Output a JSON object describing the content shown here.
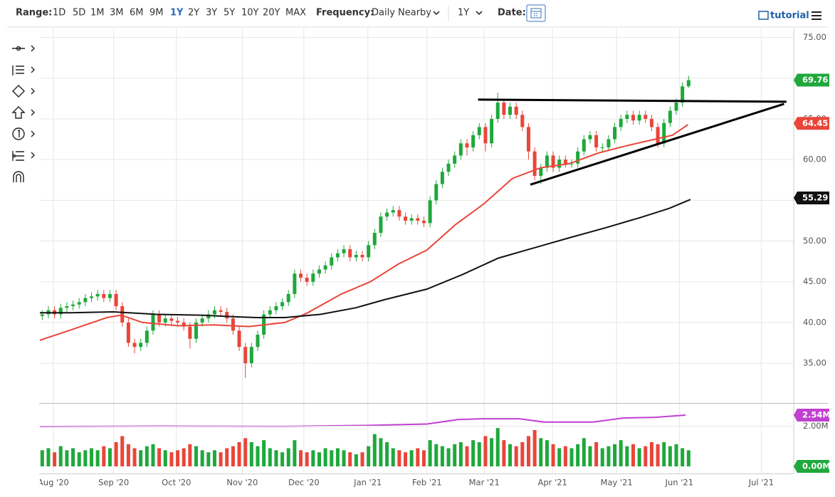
{
  "toolbar": {
    "range_label": "Range:",
    "ranges": [
      "1D",
      "5D",
      "1M",
      "3M",
      "6M",
      "9M",
      "1Y",
      "2Y",
      "3Y",
      "5Y",
      "10Y",
      "20Y",
      "MAX"
    ],
    "active_range": 6,
    "frequency_label": "Frequency:",
    "frequency": "Daily Nearby",
    "period": "1Y",
    "date_label": "Date:",
    "tutorial": "tutorial"
  },
  "chart_data": {
    "type": "candlestick",
    "xlim": [
      0,
      122
    ],
    "xticks": [
      {
        "value": 2.3,
        "label": "Aug '20"
      },
      {
        "value": 12.1,
        "label": "Sep '20"
      },
      {
        "value": 22.3,
        "label": "Oct '20"
      },
      {
        "value": 33,
        "label": "Nov '20"
      },
      {
        "value": 43,
        "label": "Dec '20"
      },
      {
        "value": 53.4,
        "label": "Jan '21"
      },
      {
        "value": 63,
        "label": "Feb '21"
      },
      {
        "value": 72.3,
        "label": "Mar '21"
      },
      {
        "value": 83.4,
        "label": "Apr '21"
      },
      {
        "value": 93.8,
        "label": "May '21"
      },
      {
        "value": 104,
        "label": "Jun '21"
      },
      {
        "value": 117.3,
        "label": "Jul '21"
      }
    ],
    "ylim": [
      30.2,
      76.1
    ],
    "yticks": [
      {
        "value": 35,
        "label": "35.00"
      },
      {
        "value": 40,
        "label": "40.00"
      },
      {
        "value": 45,
        "label": "45.00"
      },
      {
        "value": 50,
        "label": "50.00"
      },
      {
        "value": 55,
        "label": "55.00"
      },
      {
        "value": 60,
        "label": "60.00"
      },
      {
        "value": 65,
        "label": "65.00"
      },
      {
        "value": 70,
        "label": "70.00"
      },
      {
        "value": 75,
        "label": "75.00"
      }
    ],
    "vlim": [
      0,
      3.07
    ],
    "vticks": [
      {
        "value": 2,
        "label": "2.00M"
      }
    ],
    "grid": true,
    "up_color": "#1fa83c",
    "down_color": "#e8463a",
    "open": [
      40.8,
      41.0,
      41.5,
      41.0,
      41.8,
      42.0,
      42.2,
      42.5,
      43.0,
      43.2,
      43.5,
      43.0,
      43.5,
      42.0,
      40.0,
      37.5,
      37.0,
      37.5,
      39.0,
      41.0,
      40.0,
      40.5,
      40.2,
      40.0,
      39.5,
      38.0,
      40.0,
      40.5,
      41.0,
      41.5,
      41.3,
      40.5,
      39.0,
      37.0,
      35.0,
      37.0,
      38.5,
      41.0,
      41.5,
      42.0,
      42.5,
      43.5,
      46.0,
      45.5,
      45.0,
      46.0,
      46.5,
      47.0,
      48.0,
      48.5,
      49.0,
      48.0,
      48.3,
      48.0,
      49.5,
      51.0,
      53.0,
      53.5,
      53.8,
      53.0,
      52.5,
      52.8,
      52.5,
      52.2,
      55.0,
      57.0,
      58.5,
      59.5,
      60.5,
      62.0,
      61.5,
      63.0,
      64.0,
      62.0,
      65.0,
      67.0,
      65.5,
      66.5,
      65.5,
      64.0,
      61.0,
      58.0,
      59.0,
      60.5,
      59.0,
      60.0,
      59.5,
      59.5,
      61.0,
      62.5,
      63.0,
      61.5,
      61.5,
      62.5,
      64.0,
      65.0,
      65.5,
      64.8,
      65.5,
      65.0,
      64.0,
      62.0,
      64.5,
      66.0,
      67.0,
      69.0
    ],
    "high": [
      41.5,
      42.0,
      42.0,
      42.3,
      42.5,
      42.7,
      43.0,
      43.5,
      43.7,
      44.0,
      44.0,
      44.0,
      44.0,
      42.5,
      40.5,
      38.0,
      38.0,
      39.5,
      41.5,
      41.5,
      41.0,
      41.0,
      40.7,
      40.5,
      40.0,
      40.5,
      41.0,
      41.5,
      42.0,
      42.0,
      41.8,
      41.0,
      39.5,
      37.5,
      37.5,
      39.0,
      41.5,
      42.0,
      42.5,
      43.0,
      44.0,
      46.5,
      46.5,
      46.0,
      46.5,
      47.0,
      47.5,
      48.5,
      49.0,
      49.5,
      49.5,
      48.8,
      48.8,
      50.0,
      51.5,
      53.5,
      54.0,
      54.3,
      54.3,
      53.5,
      53.3,
      53.3,
      53.0,
      55.5,
      57.5,
      59.0,
      60.0,
      61.0,
      62.5,
      62.5,
      63.5,
      64.5,
      64.5,
      65.5,
      68.2,
      67.5,
      67.0,
      67.0,
      66.0,
      64.5,
      61.5,
      59.5,
      61.0,
      61.0,
      60.5,
      60.5,
      60.0,
      61.5,
      63.0,
      63.5,
      63.5,
      62.0,
      63.0,
      64.5,
      65.5,
      66.0,
      66.0,
      66.0,
      66.0,
      65.5,
      64.5,
      65.0,
      66.5,
      67.5,
      69.5,
      70.3
    ],
    "low": [
      40.3,
      40.5,
      40.5,
      40.5,
      41.3,
      41.5,
      41.7,
      42.0,
      42.5,
      42.7,
      42.5,
      42.5,
      41.5,
      39.5,
      37.0,
      36.2,
      36.5,
      37.0,
      38.5,
      39.5,
      39.5,
      39.7,
      39.5,
      39.0,
      36.8,
      37.5,
      39.5,
      40.0,
      40.5,
      40.8,
      40.0,
      38.5,
      36.5,
      33.2,
      34.5,
      36.5,
      38.0,
      40.5,
      41.0,
      41.5,
      42.0,
      43.0,
      45.0,
      44.5,
      44.5,
      45.5,
      46.0,
      46.5,
      47.5,
      48.0,
      47.5,
      47.5,
      47.5,
      47.5,
      49.0,
      50.5,
      52.5,
      53.0,
      52.5,
      52.0,
      52.0,
      52.0,
      51.7,
      51.7,
      54.5,
      56.5,
      58.0,
      59.0,
      60.0,
      60.5,
      61.0,
      62.5,
      61.0,
      61.5,
      64.5,
      65.0,
      65.0,
      65.0,
      63.5,
      60.0,
      57.5,
      57.0,
      58.5,
      58.5,
      58.5,
      59.0,
      59.0,
      59.0,
      60.5,
      62.0,
      61.0,
      61.0,
      61.0,
      62.0,
      63.5,
      64.5,
      64.3,
      64.3,
      64.5,
      63.5,
      61.5,
      61.5,
      64.0,
      65.5,
      66.5,
      68.8
    ],
    "close": [
      41.0,
      41.5,
      41.0,
      41.8,
      42.0,
      42.2,
      42.5,
      43.0,
      43.2,
      43.5,
      43.0,
      43.5,
      42.0,
      40.0,
      37.5,
      37.0,
      37.5,
      39.0,
      41.0,
      40.0,
      40.5,
      40.2,
      40.0,
      39.5,
      38.0,
      40.0,
      40.5,
      41.0,
      41.5,
      41.3,
      40.5,
      39.0,
      37.0,
      35.0,
      37.0,
      38.5,
      41.0,
      41.5,
      42.0,
      42.5,
      43.5,
      46.0,
      45.5,
      45.0,
      46.0,
      46.5,
      47.0,
      48.0,
      48.5,
      49.0,
      48.0,
      48.3,
      48.0,
      49.5,
      51.0,
      53.0,
      53.5,
      53.8,
      53.0,
      52.5,
      52.8,
      52.5,
      52.2,
      55.0,
      57.0,
      58.5,
      59.5,
      60.5,
      62.0,
      61.5,
      63.0,
      64.0,
      62.0,
      65.0,
      67.0,
      65.5,
      66.5,
      65.5,
      64.0,
      61.0,
      58.0,
      59.0,
      60.5,
      59.0,
      60.0,
      59.5,
      59.5,
      61.0,
      62.5,
      63.0,
      61.5,
      61.5,
      62.5,
      64.0,
      65.0,
      65.5,
      64.8,
      65.5,
      65.0,
      64.0,
      62.0,
      64.5,
      66.0,
      67.0,
      69.0,
      69.76
    ],
    "volume": [
      0.8,
      0.9,
      0.7,
      1.0,
      0.8,
      0.9,
      0.7,
      0.8,
      0.9,
      0.8,
      1.0,
      0.9,
      1.2,
      1.5,
      1.1,
      0.9,
      0.8,
      1.0,
      1.1,
      0.9,
      0.8,
      0.7,
      0.8,
      0.9,
      1.1,
      1.0,
      0.8,
      0.7,
      0.8,
      0.7,
      0.9,
      1.0,
      1.2,
      1.4,
      1.2,
      1.0,
      1.3,
      0.9,
      0.8,
      0.7,
      0.9,
      1.3,
      0.8,
      0.7,
      0.8,
      0.7,
      0.9,
      0.8,
      0.9,
      0.8,
      0.7,
      0.6,
      0.7,
      1.0,
      1.6,
      1.4,
      1.2,
      0.9,
      0.8,
      0.7,
      0.8,
      0.9,
      0.8,
      1.3,
      1.1,
      1.0,
      0.9,
      1.1,
      1.2,
      1.0,
      1.3,
      1.2,
      1.5,
      1.4,
      1.9,
      1.3,
      1.1,
      1.0,
      1.2,
      1.5,
      1.8,
      1.4,
      1.3,
      1.1,
      0.9,
      1.0,
      0.9,
      1.1,
      1.4,
      1.0,
      1.2,
      0.9,
      1.0,
      1.1,
      1.3,
      1.0,
      1.1,
      0.9,
      1.0,
      1.2,
      1.1,
      1.2,
      1.0,
      1.1,
      0.9,
      0.8
    ],
    "lines": [
      {
        "color": "#e8463a",
        "x": [
          0,
          5.2,
          11,
          13.3,
          16.8,
          22.5,
          28.3,
          34.1,
          39.9,
          43.4,
          49.1,
          53.8,
          58.4,
          63,
          67.6,
          72.3,
          76.9,
          81.5,
          86.1,
          90.8,
          95.4,
          100,
          102.9,
          105.4
        ],
        "values": [
          37.8,
          39.1,
          40.6,
          40.9,
          40.0,
          39.6,
          39.7,
          39.5,
          40.0,
          41.1,
          43.5,
          45.0,
          47.2,
          48.9,
          52.0,
          54.6,
          57.7,
          59.0,
          59.5,
          60.8,
          61.7,
          62.5,
          63.0,
          64.3
        ]
      },
      {
        "color": "#111111",
        "x": [
          0,
          5.2,
          12.1,
          19.1,
          26.2,
          31.8,
          35.3,
          39.9,
          45.7,
          51.4,
          56.1,
          63,
          68.8,
          74.6,
          79.2,
          86.1,
          91.9,
          97.7,
          102.3,
          105.8
        ],
        "values": [
          41.2,
          41.2,
          41.3,
          41.0,
          40.9,
          40.7,
          40.6,
          40.6,
          41.0,
          41.8,
          42.8,
          44.1,
          45.9,
          47.9,
          48.9,
          50.4,
          51.6,
          52.9,
          54.0,
          55.1
        ]
      }
    ],
    "volume_line": {
      "color": "#c040d0",
      "x": [
        0,
        20,
        40,
        53,
        63,
        68,
        72,
        78,
        82,
        90,
        95,
        100,
        105
      ],
      "values": [
        1.98,
        2.0,
        1.99,
        2.03,
        2.1,
        2.32,
        2.36,
        2.36,
        2.2,
        2.2,
        2.4,
        2.43,
        2.54
      ]
    },
    "trendlines": [
      {
        "x": [
          71.3,
          121.4
        ],
        "values": [
          67.37,
          67.1
        ]
      },
      {
        "x": [
          79.8,
          121
        ],
        "values": [
          56.93,
          66.84
        ]
      }
    ],
    "badges": [
      {
        "value": 69.76,
        "label": "69.76",
        "color": "#1fa83c"
      },
      {
        "value": 64.45,
        "label": "64.45",
        "color": "#e8463a"
      },
      {
        "value": 55.29,
        "label": "55.29",
        "color": "#111111"
      }
    ],
    "volume_badges": [
      {
        "value": 2.54,
        "label": "2.54M",
        "color": "#c040d0"
      },
      {
        "value": 0,
        "label": "0.00M",
        "color": "#1fa83c"
      }
    ]
  }
}
